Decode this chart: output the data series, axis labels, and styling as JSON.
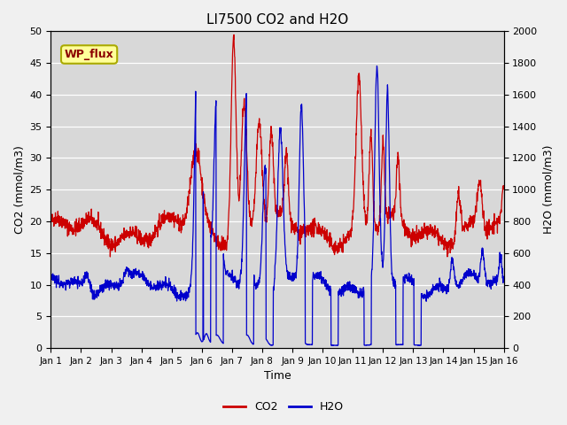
{
  "title": "LI7500 CO2 and H2O",
  "xlabel": "Time",
  "ylabel_left": "CO2 (mmol/m3)",
  "ylabel_right": "H2O (mmol/m3)",
  "co2_color": "#cc0000",
  "h2o_color": "#0000cc",
  "fig_bg_color": "#f0f0f0",
  "plot_bg_color": "#d8d8d8",
  "legend_label": "WP_flux",
  "legend_bg": "#ffff99",
  "legend_edge": "#aaaa00",
  "ylim_left": [
    0,
    50
  ],
  "ylim_right": [
    0,
    2000
  ],
  "xtick_labels": [
    "Jan 1",
    "Jan 2",
    "Jan 3",
    "Jan 4",
    "Jan 5",
    "Jan 6",
    "Jan 7",
    "Jan 8",
    "Jan 9",
    "Jan 10",
    "Jan 11",
    "Jan 12",
    "Jan 13",
    "Jan 14",
    "Jan 15",
    "Jan 16"
  ],
  "yticks_left": [
    0,
    5,
    10,
    15,
    20,
    25,
    30,
    35,
    40,
    45,
    50
  ],
  "yticks_right": [
    0,
    200,
    400,
    600,
    800,
    1000,
    1200,
    1400,
    1600,
    1800,
    2000
  ],
  "n_points": 2000,
  "days": 15
}
